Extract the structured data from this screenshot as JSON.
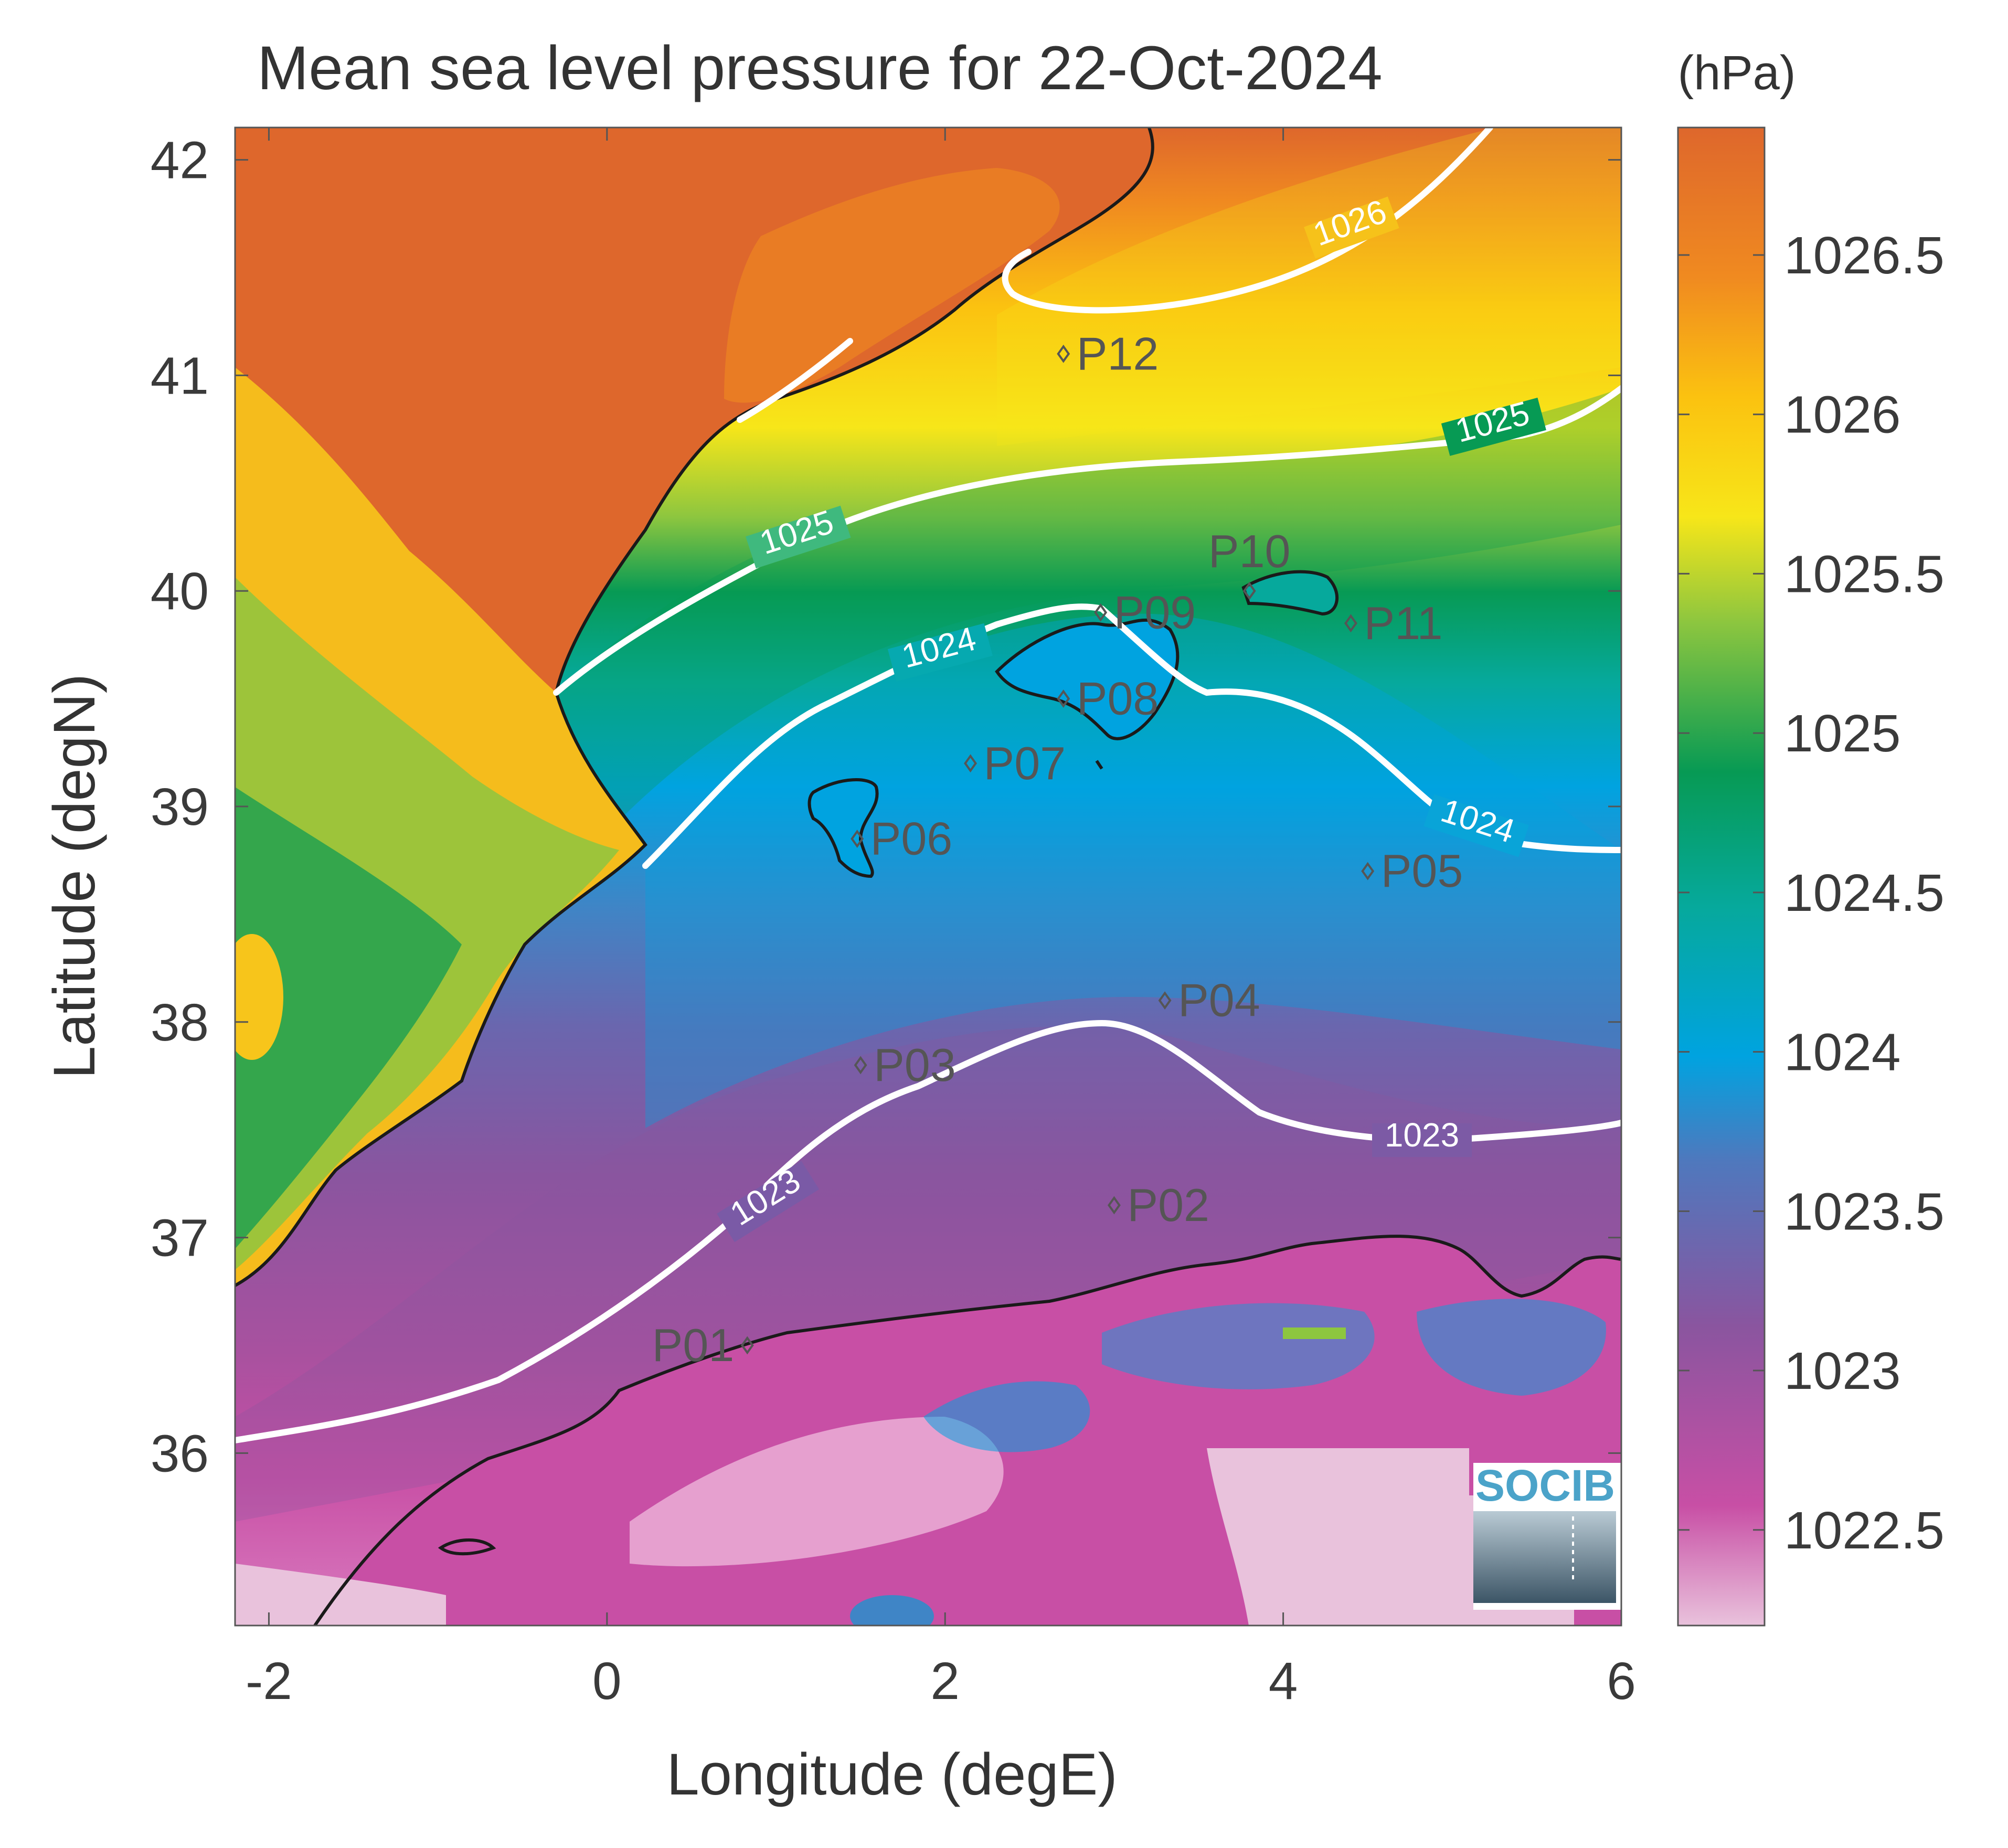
{
  "title": "Mean sea level pressure for 22-Oct-2024",
  "unit": "(hPa)",
  "xlabel": "Longitude (degE)",
  "ylabel": "Latitude (degN)",
  "logo_text": "SOCIB",
  "x_ticks": [
    "-2",
    "0",
    "2",
    "4",
    "6"
  ],
  "y_ticks": [
    "42",
    "41",
    "40",
    "39",
    "38",
    "37",
    "36"
  ],
  "colorbar": {
    "range": [
      1022.2,
      1026.9
    ],
    "ticks": [
      "1026.5",
      "1026",
      "1025.5",
      "1025",
      "1024.5",
      "1024",
      "1023.5",
      "1023",
      "1022.5"
    ],
    "colors": [
      "#e9c2dc",
      "#c84fa5",
      "#8a559f",
      "#3f85c6",
      "#00a3e0",
      "#06a99c",
      "#079a54",
      "#8dc63f",
      "#f7e619",
      "#fbc210",
      "#f08a20",
      "#de672c"
    ]
  },
  "contour_labels": [
    "1026",
    "1025",
    "1025",
    "1024",
    "1024",
    "1023",
    "1023"
  ],
  "points": [
    {
      "name": "P01",
      "lon": 0.83,
      "lat": 36.5
    },
    {
      "name": "P02",
      "lon": 3.0,
      "lat": 37.15
    },
    {
      "name": "P03",
      "lon": 1.5,
      "lat": 37.8
    },
    {
      "name": "P04",
      "lon": 3.3,
      "lat": 38.1
    },
    {
      "name": "P05",
      "lon": 4.5,
      "lat": 38.7
    },
    {
      "name": "P06",
      "lon": 1.48,
      "lat": 38.85
    },
    {
      "name": "P07",
      "lon": 2.15,
      "lat": 39.2
    },
    {
      "name": "P08",
      "lon": 2.7,
      "lat": 39.5
    },
    {
      "name": "P09",
      "lon": 2.92,
      "lat": 39.9
    },
    {
      "name": "P10",
      "lon": 3.8,
      "lat": 40.0
    },
    {
      "name": "P11",
      "lon": 4.4,
      "lat": 39.85
    },
    {
      "name": "P12",
      "lon": 2.7,
      "lat": 41.1
    }
  ]
}
